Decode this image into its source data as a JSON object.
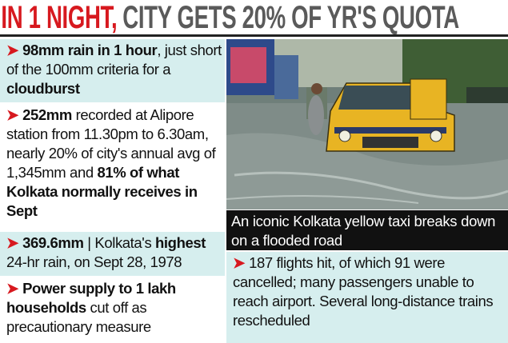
{
  "header": {
    "title_parts": [
      {
        "text": "IN 1 NIGHT,",
        "color": "#d7191f"
      },
      {
        "text": "CITY GETS 20% OF YR'S QUOTA",
        "color": "#5a5a5a"
      }
    ]
  },
  "left_items": [
    {
      "background": "#d6eeee",
      "parts": [
        {
          "text": "98mm rain in 1 hour",
          "bold": true
        },
        {
          "text": ", just short of the 100mm criteria for a ",
          "bold": false
        },
        {
          "text": "cloudburst",
          "bold": true
        }
      ]
    },
    {
      "background": "#ffffff",
      "parts": [
        {
          "text": "252mm",
          "bold": true
        },
        {
          "text": " recorded at Alipore station from 11.30pm to 6.30am, nearly 20% of city's annual avg of 1,345mm and ",
          "bold": false
        },
        {
          "text": "81% of what Kolkata normally receives in Sept",
          "bold": true
        }
      ]
    },
    {
      "background": "#d6eeee",
      "parts": [
        {
          "text": "369.6mm",
          "bold": true
        },
        {
          "text": " | Kolkata's ",
          "bold": false
        },
        {
          "text": "highest",
          "bold": true
        },
        {
          "text": " 24-hr rain, on Sept 28, 1978",
          "bold": false
        }
      ]
    },
    {
      "background": "#ffffff",
      "parts": [
        {
          "text": "Power supply to 1 lakh households",
          "bold": true
        },
        {
          "text": " cut off as precautionary measure",
          "bold": false
        }
      ]
    }
  ],
  "photo_caption": "An iconic Kolkata yellow taxi breaks down on a flooded road",
  "right_item": {
    "background": "#d6eeee",
    "parts": [
      {
        "text": "187 flights hit, of which 91 were cancelled; many passengers unable to reach airport. Several long-distance trains rescheduled",
        "bold": false
      }
    ]
  }
}
